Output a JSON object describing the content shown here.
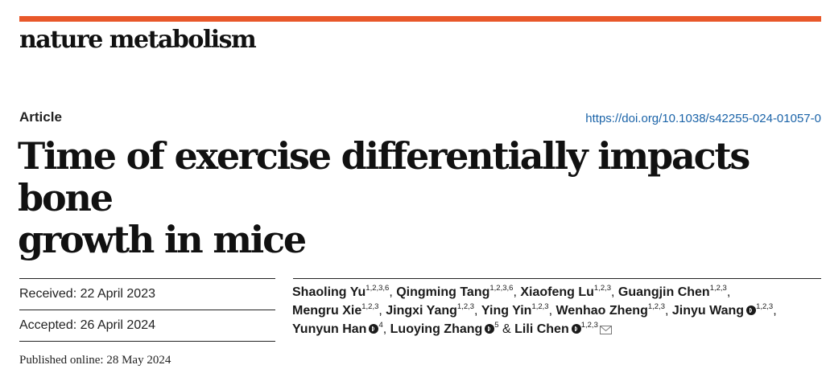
{
  "journal": {
    "name": "nature metabolism"
  },
  "article": {
    "type": "Article",
    "doi": "https://doi.org/10.1038/s42255-024-01057-0",
    "title_line1": "Time of exercise differentially impacts bone",
    "title_line2": "growth in mice"
  },
  "dates": {
    "received": "Received: 22 April 2023",
    "accepted": "Accepted: 26 April 2024",
    "published": "Published online: 28 May 2024"
  },
  "authors": [
    {
      "name": "Shaoling Yu",
      "aff": "1,2,3,6",
      "sep": ", "
    },
    {
      "name": "Qingming Tang",
      "aff": "1,2,3,6",
      "sep": ", "
    },
    {
      "name": "Xiaofeng Lu",
      "aff": "1,2,3",
      "sep": ", "
    },
    {
      "name": "Guangjin Chen",
      "aff": "1,2,3",
      "sep": ", "
    },
    {
      "name": "Mengru Xie",
      "aff": "1,2,3",
      "sep": ", "
    },
    {
      "name": "Jingxi Yang",
      "aff": "1,2,3",
      "sep": ", "
    },
    {
      "name": "Ying Yin",
      "aff": "1,2,3",
      "sep": ", "
    },
    {
      "name": "Wenhao Zheng",
      "aff": "1,2,3",
      "sep": ", "
    },
    {
      "name": "Jinyu Wang",
      "aff": "1,2,3",
      "sep": ", "
    },
    {
      "name": "Yunyun Han",
      "aff": "4",
      "sep": ", "
    },
    {
      "name": "Luoying Zhang",
      "aff": "5",
      "sep": " & "
    },
    {
      "name": "Lili Chen",
      "aff": "1,2,3",
      "sep": ""
    }
  ],
  "colors": {
    "accent_bar": "#e8582a",
    "link": "#1a63a8"
  },
  "icons": {
    "orcid": "orcid-icon",
    "mail": "mail-icon"
  }
}
